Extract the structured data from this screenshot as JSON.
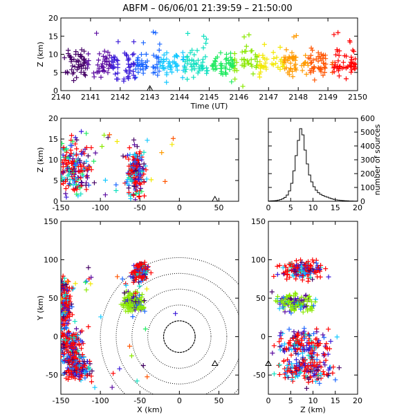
{
  "title": "ABFM – 06/06/01 21:39:59 – 21:50:00",
  "colors": {
    "series": [
      "#440066",
      "#5a0aa0",
      "#3a1ad8",
      "#1a66ff",
      "#15c8ff",
      "#10e0c0",
      "#20ea60",
      "#8ae800",
      "#f2e800",
      "#ff9a00",
      "#ff5500",
      "#ff0000"
    ],
    "axes": "#000000"
  },
  "chart_data": [
    {
      "id": "time-height",
      "type": "scatter",
      "marker": "plus",
      "xlabel": "Time (UT)",
      "ylabel": "Z (km)",
      "xlim": [
        2140,
        2150
      ],
      "ylim": [
        0,
        20
      ],
      "xticks": [
        "2140",
        "2141",
        "2142",
        "2143",
        "2144",
        "2145",
        "2146",
        "2147",
        "2148",
        "2149",
        "2150"
      ],
      "yticks": [
        "0",
        "5",
        "10",
        "15",
        "20"
      ],
      "color_by": "time",
      "median_z": [
        7.5,
        7.2,
        7.0,
        7.6,
        7.4,
        7.3,
        7.6,
        7.5,
        7.2,
        7.3
      ],
      "station_markers": [
        {
          "x": 2143.0,
          "y": 0
        }
      ]
    },
    {
      "id": "x-height",
      "type": "scatter",
      "marker": "plus",
      "xlabel": "",
      "ylabel": "Z (km)",
      "xlim": [
        -150,
        75
      ],
      "ylim": [
        0,
        20
      ],
      "xticks": [
        "-150",
        "-100",
        "-50",
        "0",
        "50"
      ],
      "yticks": [
        "0",
        "5",
        "10",
        "15",
        "20"
      ],
      "clusters": [
        {
          "x": -133,
          "z": 8,
          "spread_x": 10,
          "spread_z": 3
        },
        {
          "x": -55,
          "z": 7,
          "spread_x": 5,
          "spread_z": 3
        }
      ],
      "station_markers": [
        {
          "x": 45,
          "y": 0
        }
      ]
    },
    {
      "id": "altitude-histogram",
      "type": "step",
      "xlabel": "",
      "ylabel": "number of sources",
      "xlim": [
        0,
        20
      ],
      "ylim": [
        0,
        600
      ],
      "xticks": [
        "0",
        "5",
        "10",
        "15",
        "20"
      ],
      "yticks": [
        "0",
        "100",
        "200",
        "300",
        "400",
        "500",
        "600"
      ],
      "x": [
        0,
        0.5,
        1,
        1.5,
        2,
        2.5,
        3,
        3.5,
        4,
        4.5,
        5,
        5.5,
        6,
        6.5,
        7,
        7.5,
        8,
        8.5,
        9,
        9.5,
        10,
        10.5,
        11,
        11.5,
        12,
        12.5,
        13,
        13.5,
        14,
        14.5,
        15,
        15.5,
        16,
        16.5,
        17,
        17.5,
        18,
        18.5,
        19,
        19.5
      ],
      "values": [
        2,
        3,
        4,
        5,
        8,
        12,
        18,
        28,
        45,
        75,
        130,
        220,
        330,
        440,
        525,
        480,
        370,
        270,
        190,
        140,
        105,
        80,
        62,
        50,
        42,
        35,
        30,
        24,
        18,
        14,
        10,
        8,
        6,
        5,
        4,
        3,
        2,
        2,
        1,
        1
      ]
    },
    {
      "id": "plan-view",
      "type": "scatter",
      "marker": "plus",
      "xlabel": "X (km)",
      "ylabel": "Y (km)",
      "xlim": [
        -150,
        75
      ],
      "ylim": [
        -75,
        150
      ],
      "xticks": [
        "-150",
        "-100",
        "-50",
        "0",
        "50"
      ],
      "yticks": [
        "-50",
        "0",
        "50",
        "100",
        "150"
      ],
      "range_rings_km": [
        20,
        40,
        60,
        80,
        100
      ],
      "clusters": [
        {
          "x": -50,
          "y": 85,
          "spread_x": 5,
          "spread_y": 6
        },
        {
          "x": -58,
          "y": 45,
          "spread_x": 6,
          "spread_y": 6
        },
        {
          "x": -138,
          "y": -10,
          "spread_x": 8,
          "spread_y": 12
        },
        {
          "x": -128,
          "y": -42,
          "spread_x": 8,
          "spread_y": 8
        },
        {
          "x": -145,
          "y": 45,
          "spread_x": 4,
          "spread_y": 15
        }
      ],
      "station_markers": [
        {
          "x": 45,
          "y": -35
        }
      ]
    },
    {
      "id": "height-y",
      "type": "scatter",
      "marker": "plus",
      "xlabel": "Z (km)",
      "ylabel": "",
      "xlim": [
        0,
        20
      ],
      "ylim": [
        -75,
        150
      ],
      "xticks": [
        "0",
        "5",
        "10",
        "15",
        "20"
      ],
      "yticks": [
        "-50",
        "0",
        "50",
        "100",
        "150"
      ],
      "station_markers": [
        {
          "x": 0,
          "y": -35
        }
      ]
    }
  ]
}
